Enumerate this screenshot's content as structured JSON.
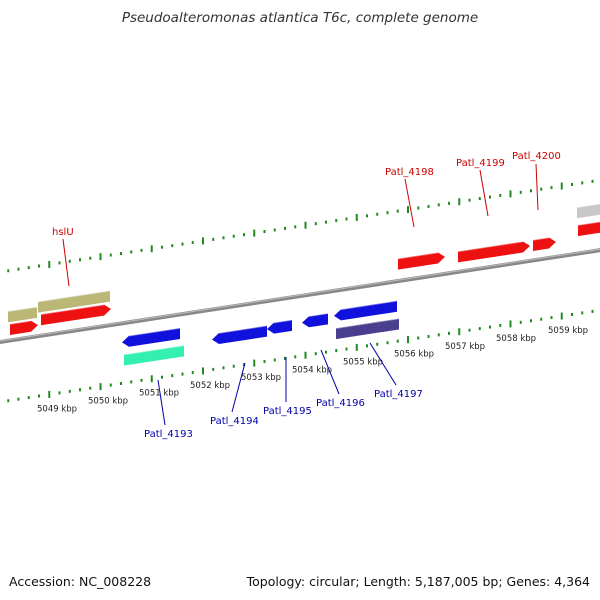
{
  "title": "Pseudoalteromonas atlantica T6c, complete genome",
  "footer": {
    "accession": "Accession: NC_008228",
    "topology": "Topology: circular; Length: 5,187,005 bp; Genes: 4,364"
  },
  "colors": {
    "forward": "#ee1111",
    "reverse": "#1111dd",
    "olive": "#bbb777",
    "teal": "#33f0b0",
    "indigo": "#4a3f8f",
    "gray": "#c8c8c8",
    "backbone": "#888888",
    "ticks": "#228822",
    "label_forward": "#cc0000",
    "label_reverse": "#0000aa"
  },
  "scale": {
    "unit": "kbp",
    "labels": [
      "5049 kbp",
      "5050 kbp",
      "5051 kbp",
      "5052 kbp",
      "5053 kbp",
      "5054 kbp",
      "5055 kbp",
      "5056 kbp",
      "5057 kbp",
      "5058 kbp",
      "5059 kbp"
    ]
  },
  "gene_labels": {
    "forward": [
      "hslU",
      "Patl_4198",
      "Patl_4199",
      "Patl_4200"
    ],
    "reverse": [
      "Patl_4193",
      "Patl_4194",
      "Patl_4195",
      "Patl_4196",
      "Patl_4197"
    ]
  }
}
